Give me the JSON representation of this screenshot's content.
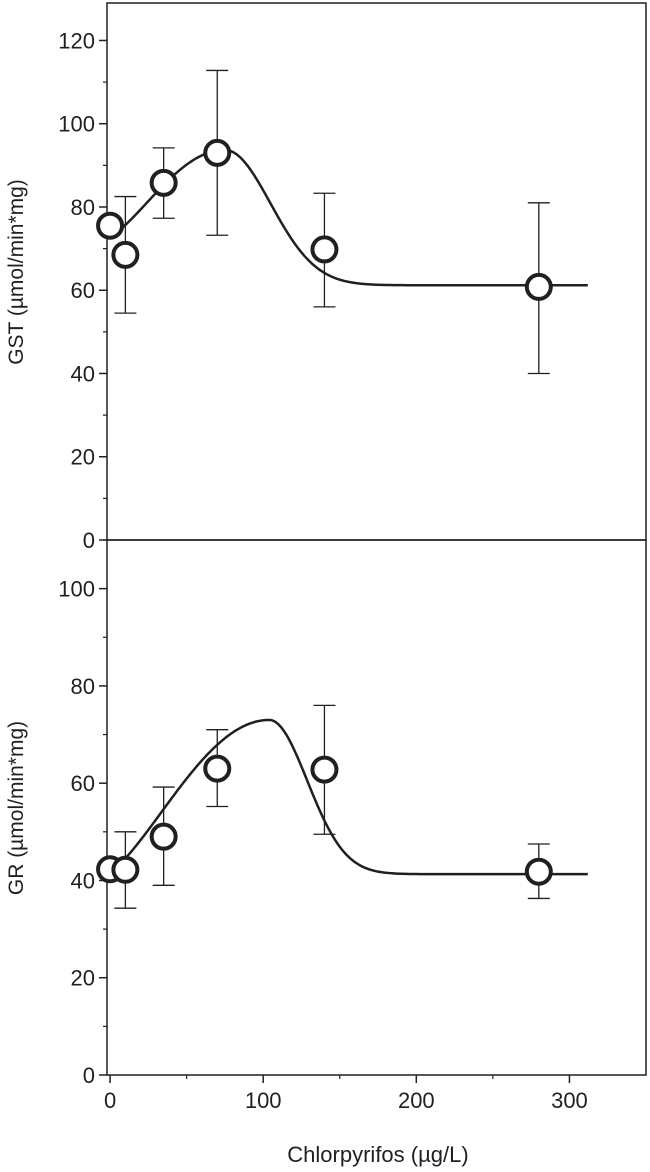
{
  "chart_data": [
    {
      "type": "scatter",
      "panel": "top",
      "ylabel": "GST (µmol/min*mg)",
      "xlabel": "",
      "xlim": [
        -2,
        350
      ],
      "ylim": [
        0,
        129
      ],
      "yticks": [
        0,
        20,
        40,
        60,
        80,
        100,
        120
      ],
      "xticks": [],
      "points": [
        {
          "x": 0,
          "y": 75.5,
          "err_high": null,
          "err_low": null
        },
        {
          "x": 10,
          "y": 68.5,
          "err_high": 82.5,
          "err_low": 54.5
        },
        {
          "x": 35,
          "y": 85.8,
          "err_high": 94.2,
          "err_low": 77.3
        },
        {
          "x": 70,
          "y": 93.0,
          "err_high": 112.8,
          "err_low": 73.2
        },
        {
          "x": 140,
          "y": 69.8,
          "err_high": 83.3,
          "err_low": 56.0
        },
        {
          "x": 280,
          "y": 60.8,
          "err_high": 81.0,
          "err_low": 40.0
        }
      ],
      "curve": {
        "baseline": 61.2,
        "start": 73.0,
        "amplitude": 32.5,
        "center": 75,
        "width": 42,
        "x_end": 312
      }
    },
    {
      "type": "scatter",
      "panel": "bottom",
      "ylabel": "GR (µmol/min*mg)",
      "xlabel": "Chlorpyrifos (µg/L)",
      "xlim": [
        -2,
        350
      ],
      "ylim": [
        0,
        110
      ],
      "yticks": [
        0,
        20,
        40,
        60,
        80,
        100
      ],
      "xticks": [
        0,
        100,
        200,
        300
      ],
      "points": [
        {
          "x": 0,
          "y": 42.3,
          "err_high": null,
          "err_low": null
        },
        {
          "x": 10,
          "y": 42.2,
          "err_high": 50.0,
          "err_low": 34.3
        },
        {
          "x": 35,
          "y": 49.0,
          "err_high": 59.2,
          "err_low": 39.0
        },
        {
          "x": 70,
          "y": 63.0,
          "err_high": 71.0,
          "err_low": 55.2
        },
        {
          "x": 140,
          "y": 62.8,
          "err_high": 76.0,
          "err_low": 49.5
        },
        {
          "x": 280,
          "y": 41.8,
          "err_high": 47.5,
          "err_low": 36.3
        }
      ],
      "curve": {
        "baseline": 41.3,
        "start": 41.9,
        "amplitude": 31.7,
        "center": 104,
        "width": 35,
        "x_end": 312
      }
    }
  ]
}
